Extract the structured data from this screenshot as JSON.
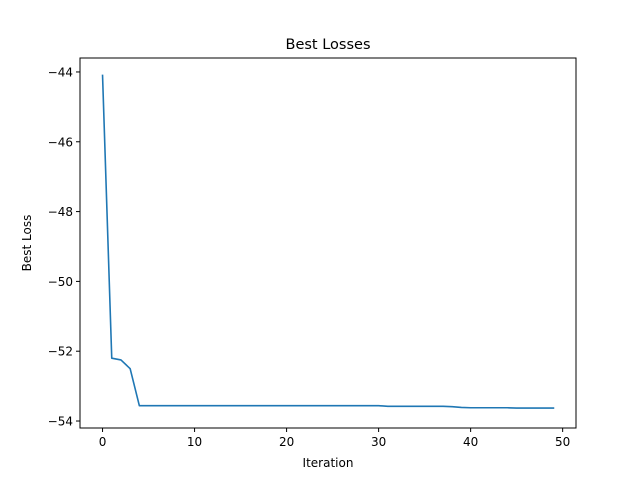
{
  "chart_data": {
    "type": "line",
    "title": "Best Losses",
    "xlabel": "Iteration",
    "ylabel": "Best Loss",
    "xlim": [
      -2.45,
      51.45
    ],
    "ylim": [
      -54.2,
      -43.6
    ],
    "xticks": [
      0,
      10,
      20,
      30,
      40,
      50
    ],
    "yticks": [
      -44,
      -46,
      -48,
      -50,
      -52,
      -54
    ],
    "ytick_labels": [
      "−44",
      "−46",
      "−48",
      "−50",
      "−52",
      "−54"
    ],
    "grid": false,
    "series": [
      {
        "color": "#1f77b4",
        "x": [
          0,
          1,
          2,
          3,
          4,
          5,
          6,
          7,
          8,
          9,
          10,
          11,
          12,
          13,
          14,
          15,
          16,
          17,
          18,
          19,
          20,
          21,
          22,
          23,
          24,
          25,
          26,
          27,
          28,
          29,
          30,
          31,
          32,
          33,
          34,
          35,
          36,
          37,
          38,
          39,
          40,
          41,
          42,
          43,
          44,
          45,
          46,
          47,
          48,
          49
        ],
        "y": [
          -44.1,
          -52.2,
          -52.25,
          -52.5,
          -53.56,
          -53.56,
          -53.56,
          -53.56,
          -53.56,
          -53.56,
          -53.56,
          -53.56,
          -53.56,
          -53.56,
          -53.56,
          -53.56,
          -53.56,
          -53.56,
          -53.56,
          -53.56,
          -53.56,
          -53.56,
          -53.56,
          -53.56,
          -53.56,
          -53.56,
          -53.56,
          -53.56,
          -53.56,
          -53.56,
          -53.56,
          -53.58,
          -53.58,
          -53.58,
          -53.58,
          -53.58,
          -53.58,
          -53.58,
          -53.59,
          -53.61,
          -53.62,
          -53.62,
          -53.62,
          -53.62,
          -53.62,
          -53.63,
          -53.63,
          -53.63,
          -53.63,
          -53.63
        ]
      }
    ]
  }
}
